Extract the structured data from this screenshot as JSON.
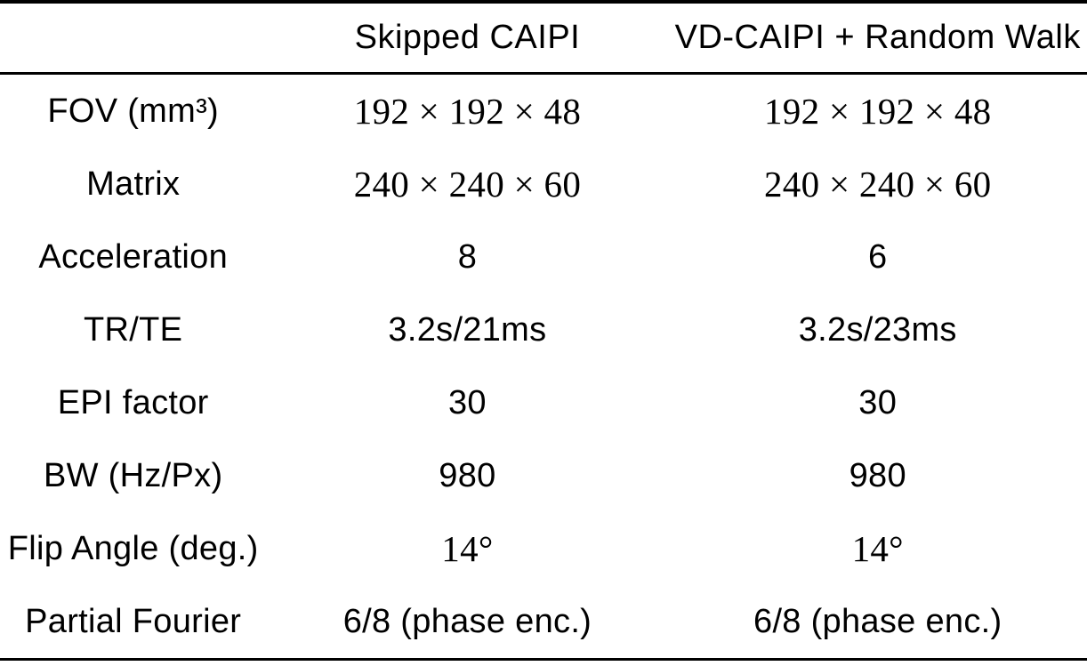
{
  "table": {
    "headers": {
      "col1": "",
      "col2": "Skipped CAIPI",
      "col3": "VD-CAIPI + Random Walk"
    },
    "rows": [
      {
        "label": "FOV (mm³)",
        "skipped": "192 × 192 × 48",
        "vd": "192 × 192 × 48"
      },
      {
        "label": "Matrix",
        "skipped": "240 × 240 × 60",
        "vd": "240 × 240 × 60"
      },
      {
        "label": "Acceleration",
        "skipped": "8",
        "vd": "6"
      },
      {
        "label": "TR/TE",
        "skipped": "3.2s/21ms",
        "vd": "3.2s/23ms"
      },
      {
        "label": "EPI factor",
        "skipped": "30",
        "vd": "30"
      },
      {
        "label": "BW (Hz/Px)",
        "skipped": "980",
        "vd": "980"
      },
      {
        "label": "Flip Angle (deg.)",
        "skipped": "14°",
        "vd": "14°"
      },
      {
        "label": "Partial Fourier",
        "skipped": "6/8 (phase enc.)",
        "vd": "6/8 (phase enc.)"
      }
    ]
  },
  "colors": {
    "text": "#000000",
    "background": "#ffffff",
    "rule": "#000000"
  }
}
